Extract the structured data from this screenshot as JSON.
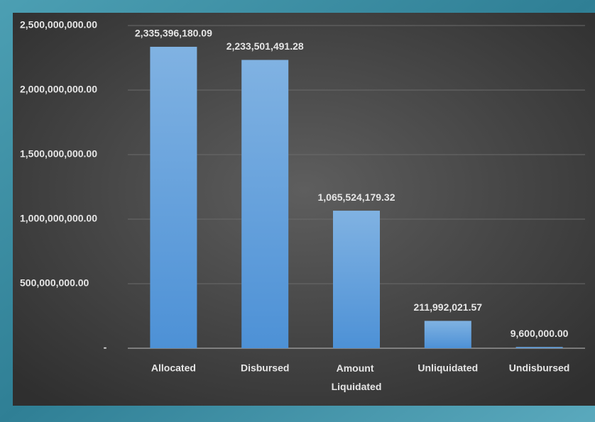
{
  "chart_data": {
    "type": "bar",
    "categories": [
      "Allocated",
      "Disbursed",
      "Amount Liquidated",
      "Unliquidated",
      "Undisbursed"
    ],
    "values": [
      2335396180.09,
      2233501491.28,
      1065524179.32,
      211992021.57,
      9600000
    ],
    "value_labels": [
      "2,335,396,180.09",
      "2,233,501,491.28",
      "1,065,524,179.32",
      "211,992,021.57",
      "9,600,000.00"
    ],
    "color": "#5b9bd5",
    "ylim": [
      0,
      2500000000
    ],
    "yticks": [
      {
        "value": 0,
        "label": "-"
      },
      {
        "value": 500000000,
        "label": "500,000,000.00"
      },
      {
        "value": 1000000000,
        "label": "1,000,000,000.00"
      },
      {
        "value": 1500000000,
        "label": "1,500,000,000.00"
      },
      {
        "value": 2000000000,
        "label": "2,000,000,000.00"
      },
      {
        "value": 2500000000,
        "label": "2,500,000,000.00"
      }
    ],
    "grid": true
  }
}
